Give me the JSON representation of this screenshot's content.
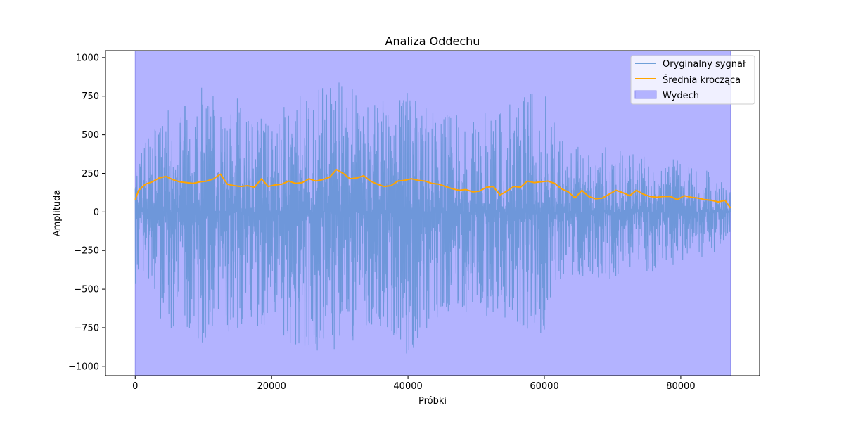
{
  "chart_data": {
    "type": "line",
    "title": "Analiza Oddechu",
    "xlabel": "Próbki",
    "ylabel": "Amplituda",
    "xlim": [
      -4360,
      91560
    ],
    "ylim": [
      -1060,
      1045
    ],
    "xticks": [
      0,
      20000,
      40000,
      60000,
      80000
    ],
    "xtick_labels": [
      "0",
      "20000",
      "40000",
      "60000",
      "80000"
    ],
    "yticks": [
      -1000,
      -750,
      -500,
      -250,
      0,
      250,
      500,
      750,
      1000
    ],
    "ytick_labels": [
      "−1000",
      "−750",
      "−500",
      "−250",
      "0",
      "250",
      "500",
      "750",
      "1000"
    ],
    "grid": false,
    "legend_position": "upper right",
    "legend": [
      {
        "label": "Oryginalny sygnał",
        "kind": "line",
        "color": "#6f9fd8"
      },
      {
        "label": "Średnia krocząca",
        "kind": "line",
        "color": "#ffa500"
      },
      {
        "label": "Wydech",
        "kind": "patch",
        "color": "#b3b3ff"
      }
    ],
    "series": [
      {
        "name": "Oryginalny sygnał",
        "color": "#6a96d8",
        "x_range": [
          0,
          87300
        ],
        "envelope_x": [
          0,
          5000,
          10000,
          15000,
          20000,
          25000,
          30000,
          35000,
          40000,
          45000,
          50000,
          55000,
          60000,
          62000,
          65000,
          70000,
          75000,
          80000,
          85000,
          87300
        ],
        "envelope_max": [
          380,
          680,
          830,
          740,
          620,
          790,
          950,
          700,
          780,
          680,
          620,
          720,
          810,
          580,
          430,
          420,
          390,
          330,
          250,
          150
        ],
        "envelope_min": [
          -480,
          -780,
          -850,
          -800,
          -790,
          -900,
          -920,
          -720,
          -960,
          -650,
          -660,
          -760,
          -800,
          -460,
          -420,
          -440,
          -400,
          -330,
          -270,
          -150
        ]
      },
      {
        "name": "Średnia krocząca",
        "color": "#ffa500",
        "x": [
          0,
          500,
          1500,
          2500,
          3500,
          4500,
          5500,
          6500,
          7500,
          8500,
          9500,
          10500,
          11500,
          12500,
          13500,
          14500,
          15500,
          16500,
          17500,
          18500,
          19500,
          20500,
          21500,
          22500,
          23500,
          24500,
          25500,
          26500,
          27500,
          28500,
          29500,
          30500,
          31500,
          32500,
          33500,
          34500,
          35500,
          36500,
          37500,
          38500,
          39500,
          40500,
          41500,
          42500,
          43500,
          44500,
          45500,
          46500,
          47500,
          48500,
          49500,
          50500,
          51500,
          52500,
          53500,
          54500,
          55500,
          56500,
          57500,
          58500,
          59500,
          60500,
          61500,
          62500,
          63500,
          64500,
          65500,
          66500,
          67500,
          68500,
          69500,
          70500,
          71500,
          72500,
          73500,
          74500,
          75500,
          76500,
          77500,
          78500,
          79500,
          80500,
          81500,
          82500,
          83500,
          84500,
          85500,
          86500,
          87300
        ],
        "y": [
          80,
          140,
          180,
          195,
          220,
          230,
          210,
          195,
          190,
          185,
          195,
          200,
          215,
          245,
          180,
          170,
          165,
          170,
          160,
          215,
          165,
          175,
          180,
          200,
          185,
          190,
          215,
          200,
          210,
          225,
          275,
          250,
          215,
          220,
          235,
          200,
          180,
          165,
          170,
          200,
          205,
          215,
          205,
          200,
          185,
          180,
          165,
          150,
          140,
          145,
          130,
          135,
          160,
          165,
          110,
          135,
          165,
          160,
          200,
          190,
          195,
          200,
          185,
          150,
          130,
          90,
          140,
          100,
          85,
          90,
          115,
          140,
          125,
          105,
          140,
          115,
          100,
          95,
          100,
          100,
          80,
          105,
          95,
          90,
          80,
          75,
          65,
          75,
          25
        ]
      }
    ],
    "span": {
      "name": "Wydech",
      "x_start": 0,
      "x_end": 87300,
      "color": "#b3b3ff",
      "edge_color": "#8f8fef"
    }
  }
}
